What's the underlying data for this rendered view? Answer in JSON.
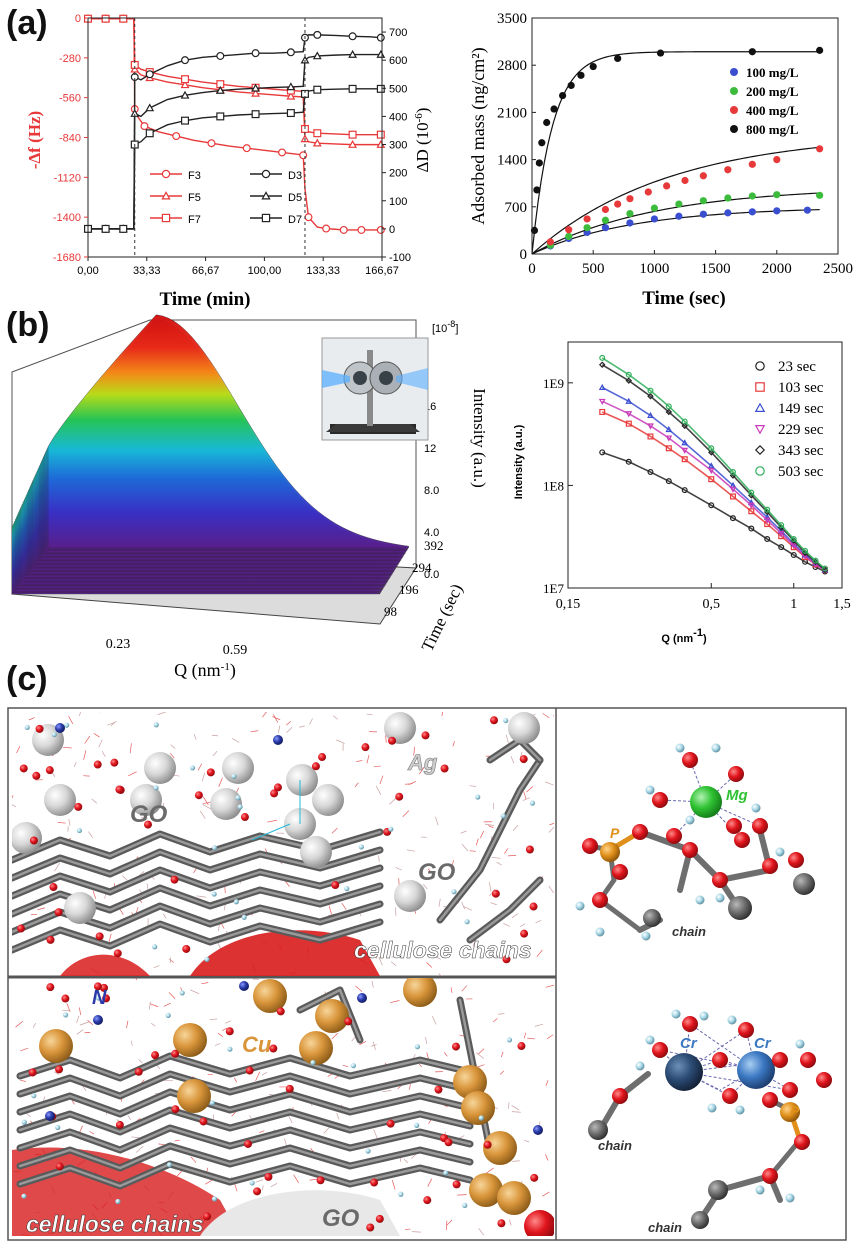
{
  "panels": {
    "a": "(a)",
    "b": "(b)",
    "c": "(c)"
  },
  "chart_data": [
    {
      "id": "a-left",
      "type": "line",
      "xlabel": "Time (min)",
      "ylabel_left": "-Δf (Hz)",
      "ylabel_right": "ΔD (10",
      "ylabel_right_sup": "-6",
      "ylabel_right_tail": ")",
      "xlim": [
        0,
        166.67
      ],
      "ylim_left": [
        -1680,
        0
      ],
      "ylim_right": [
        -100,
        750
      ],
      "x_ticks": [
        "0,00",
        "33,33",
        "66,67",
        "100,00",
        "133,33",
        "166,67"
      ],
      "x_tick_values": [
        0,
        33.33,
        66.67,
        100,
        133.33,
        166.67
      ],
      "y_left_ticks": [
        0,
        -280,
        -560,
        -840,
        -1120,
        -1400,
        -1680
      ],
      "y_right_ticks": [
        700,
        600,
        500,
        400,
        300,
        200,
        100,
        0,
        -100
      ],
      "vlines": [
        26.5,
        123
      ],
      "colors": {
        "freq": "#e8393a",
        "diss": "#222222"
      },
      "legend": [
        "F3",
        "F5",
        "F7",
        "D3",
        "D5",
        "D7"
      ],
      "series": [
        {
          "name": "F3",
          "axis": "left",
          "marker": "circle",
          "color": "#e8393a",
          "x": [
            0,
            5,
            10,
            15,
            20,
            26,
            26.5,
            28,
            32,
            40,
            50,
            60,
            70,
            80,
            90,
            100,
            110,
            120,
            122,
            123,
            125,
            130,
            135,
            140,
            145,
            150,
            155,
            160,
            166
          ],
          "y": [
            -5,
            -5,
            -5,
            -5,
            -5,
            -5,
            -640,
            -690,
            -760,
            -800,
            -830,
            -860,
            -880,
            -900,
            -915,
            -930,
            -945,
            -960,
            -965,
            -1200,
            -1400,
            -1470,
            -1480,
            -1485,
            -1490,
            -1490,
            -1490,
            -1490,
            -1490
          ]
        },
        {
          "name": "F5",
          "axis": "left",
          "marker": "triangle",
          "color": "#e8393a",
          "x": [
            0,
            5,
            10,
            15,
            20,
            26,
            26.5,
            30,
            35,
            45,
            55,
            65,
            75,
            85,
            95,
            105,
            115,
            122,
            123,
            125,
            130,
            140,
            150,
            160,
            166
          ],
          "y": [
            -5,
            -5,
            -5,
            -5,
            -5,
            -5,
            -360,
            -400,
            -420,
            -450,
            -470,
            -490,
            -505,
            -520,
            -530,
            -540,
            -550,
            -555,
            -850,
            -870,
            -880,
            -885,
            -890,
            -890,
            -890
          ]
        },
        {
          "name": "F7",
          "axis": "left",
          "marker": "square",
          "color": "#e8393a",
          "x": [
            0,
            5,
            10,
            15,
            20,
            26,
            26.5,
            30,
            35,
            45,
            55,
            65,
            75,
            85,
            95,
            105,
            115,
            122,
            123,
            125,
            130,
            140,
            150,
            160,
            166
          ],
          "y": [
            -5,
            -5,
            -5,
            -5,
            -5,
            -5,
            -330,
            -360,
            -380,
            -410,
            -430,
            -450,
            -465,
            -480,
            -490,
            -500,
            -510,
            -515,
            -780,
            -800,
            -810,
            -815,
            -820,
            -820,
            -820
          ]
        },
        {
          "name": "D3",
          "axis": "right",
          "marker": "circle",
          "color": "#222222",
          "x": [
            0,
            5,
            10,
            15,
            20,
            26,
            26.5,
            30,
            35,
            45,
            55,
            65,
            75,
            85,
            95,
            105,
            115,
            122,
            123,
            125,
            130,
            140,
            150,
            160,
            166
          ],
          "y": [
            0,
            0,
            0,
            0,
            0,
            0,
            540,
            530,
            550,
            580,
            600,
            610,
            615,
            620,
            625,
            625,
            628,
            630,
            680,
            690,
            690,
            688,
            685,
            683,
            680
          ]
        },
        {
          "name": "D5",
          "axis": "right",
          "marker": "triangle",
          "color": "#222222",
          "x": [
            0,
            5,
            10,
            15,
            20,
            26,
            26.5,
            30,
            35,
            45,
            55,
            65,
            75,
            85,
            95,
            105,
            115,
            122,
            123,
            125,
            130,
            140,
            150,
            160,
            166
          ],
          "y": [
            0,
            0,
            0,
            0,
            0,
            0,
            410,
            400,
            430,
            460,
            475,
            485,
            492,
            497,
            500,
            503,
            505,
            507,
            600,
            610,
            615,
            618,
            620,
            620,
            620
          ]
        },
        {
          "name": "D7",
          "axis": "right",
          "marker": "square",
          "color": "#222222",
          "x": [
            0,
            5,
            10,
            15,
            20,
            26,
            26.5,
            30,
            35,
            45,
            55,
            65,
            75,
            85,
            95,
            105,
            115,
            122,
            123,
            125,
            130,
            140,
            150,
            160,
            166
          ],
          "y": [
            0,
            0,
            0,
            0,
            0,
            0,
            300,
            310,
            340,
            370,
            385,
            395,
            400,
            405,
            408,
            410,
            412,
            415,
            480,
            490,
            495,
            497,
            498,
            498,
            498
          ]
        }
      ]
    },
    {
      "id": "a-right",
      "type": "scatter",
      "xlabel": "Time (sec)",
      "ylabel": "Adsorbed mass (ng/cm²)",
      "xlim": [
        0,
        2500
      ],
      "ylim": [
        0,
        3500
      ],
      "x_ticks": [
        0,
        500,
        1000,
        1500,
        2000,
        2500
      ],
      "y_ticks": [
        0,
        700,
        1400,
        2100,
        2800,
        3500
      ],
      "legend_position": "top-right",
      "series": [
        {
          "name": "100 mg/L",
          "color": "#3a4fd0",
          "x": [
            150,
            300,
            450,
            600,
            800,
            1000,
            1200,
            1400,
            1600,
            1800,
            2000,
            2250
          ],
          "y": [
            120,
            230,
            320,
            390,
            460,
            520,
            560,
            590,
            610,
            625,
            640,
            650
          ],
          "fit_max": 700,
          "fit_k": 0.0012
        },
        {
          "name": "200 mg/L",
          "color": "#3dbb3d",
          "x": [
            150,
            300,
            450,
            600,
            800,
            1000,
            1200,
            1400,
            1600,
            1800,
            2000,
            2350
          ],
          "y": [
            130,
            260,
            390,
            500,
            600,
            680,
            740,
            790,
            830,
            860,
            880,
            870
          ],
          "fit_max": 1000,
          "fit_k": 0.001
        },
        {
          "name": "400 mg/L",
          "color": "#e8393a",
          "x": [
            150,
            300,
            450,
            600,
            700,
            800,
            950,
            1100,
            1250,
            1400,
            1600,
            1800,
            2000,
            2350
          ],
          "y": [
            180,
            360,
            520,
            660,
            740,
            820,
            920,
            1010,
            1090,
            1160,
            1250,
            1330,
            1400,
            1560
          ],
          "fit_max": 1800,
          "fit_k": 0.0009
        },
        {
          "name": "800 mg/L",
          "color": "#111111",
          "x": [
            20,
            40,
            60,
            80,
            120,
            180,
            250,
            320,
            400,
            500,
            700,
            1050,
            1800,
            2350
          ],
          "y": [
            350,
            950,
            1350,
            1650,
            1950,
            2150,
            2350,
            2500,
            2650,
            2780,
            2900,
            2980,
            3000,
            3020
          ],
          "fit_max": 3000,
          "fit_k": 0.006
        }
      ]
    },
    {
      "id": "b-left",
      "type": "area",
      "xlabel": "Q (nm",
      "xlabel_sup": "-1",
      "xlabel_tail": ")",
      "ylabel": "Intensity (a.u.)",
      "zlabel": "Time (sec)",
      "scale_note": "[10",
      "scale_note_sup": "-8",
      "scale_note_tail": "]",
      "q_ticks": [
        "0.23",
        "0.59"
      ],
      "time_ticks": [
        "98",
        "196",
        "294",
        "392"
      ],
      "intensity_ticks": [
        "0.0",
        "4.0",
        "8.0",
        "12",
        "16"
      ],
      "colormap": [
        "#5a1f8a",
        "#3a2fc4",
        "#1f6ad8",
        "#18b8d8",
        "#26c456",
        "#b8dc1a",
        "#f4d41a",
        "#f48a18",
        "#e82a1a",
        "#d01010"
      ]
    },
    {
      "id": "b-right",
      "type": "scatter",
      "xlabel": "Q (nm",
      "xlabel_sup": "-1",
      "xlabel_tail": ")",
      "ylabel": "Intensity (a.u.)",
      "x_scale": "log",
      "y_scale": "log",
      "xlim": [
        0.15,
        1.5
      ],
      "ylim": [
        10000000.0,
        2500000000.0
      ],
      "x_ticks": [
        "0,15",
        "0,5",
        "1",
        "1,5"
      ],
      "x_tick_values": [
        0.15,
        0.5,
        1,
        1.5
      ],
      "y_ticks": [
        "1E7",
        "1E8",
        "1E9"
      ],
      "y_tick_values": [
        10000000.0,
        100000000.0,
        1000000000.0
      ],
      "series": [
        {
          "name": "23 sec",
          "marker": "circle",
          "color": "#222222",
          "x": [
            0.2,
            0.25,
            0.3,
            0.35,
            0.4,
            0.5,
            0.6,
            0.7,
            0.8,
            0.9,
            1.0,
            1.1,
            1.2,
            1.3
          ],
          "y": [
            210000000.0,
            170000000.0,
            135000000.0,
            110000000.0,
            90000000.0,
            64000000.0,
            48000000.0,
            38000000.0,
            30000000.0,
            25000000.0,
            21000000.0,
            18000000.0,
            16000000.0,
            14500000.0
          ]
        },
        {
          "name": "103 sec",
          "marker": "square",
          "color": "#e8393a",
          "x": [
            0.2,
            0.25,
            0.3,
            0.35,
            0.4,
            0.5,
            0.6,
            0.7,
            0.8,
            0.9,
            1.0,
            1.1,
            1.2,
            1.3
          ],
          "y": [
            520000000.0,
            400000000.0,
            300000000.0,
            230000000.0,
            180000000.0,
            115000000.0,
            78000000.0,
            56000000.0,
            42000000.0,
            32000000.0,
            25000000.0,
            20000000.0,
            17000000.0,
            15000000.0
          ]
        },
        {
          "name": "149 sec",
          "marker": "triangle",
          "color": "#3a4fd0",
          "x": [
            0.2,
            0.25,
            0.3,
            0.35,
            0.4,
            0.5,
            0.6,
            0.7,
            0.8,
            0.9,
            1.0,
            1.1,
            1.2,
            1.3
          ],
          "y": [
            900000000.0,
            660000000.0,
            480000000.0,
            350000000.0,
            260000000.0,
            155000000.0,
            100000000.0,
            68000000.0,
            49000000.0,
            36000000.0,
            27000000.0,
            21000000.0,
            17500000.0,
            15000000.0
          ]
        },
        {
          "name": "229 sec",
          "marker": "triangle-down",
          "color": "#c83ab8",
          "x": [
            0.2,
            0.25,
            0.3,
            0.35,
            0.4,
            0.5,
            0.6,
            0.7,
            0.8,
            0.9,
            1.0,
            1.1,
            1.2,
            1.3
          ],
          "y": [
            660000000.0,
            500000000.0,
            380000000.0,
            290000000.0,
            220000000.0,
            140000000.0,
            92000000.0,
            64000000.0,
            46000000.0,
            34000000.0,
            26000000.0,
            20500000.0,
            17000000.0,
            15000000.0
          ]
        },
        {
          "name": "343 sec",
          "marker": "diamond",
          "color": "#222222",
          "x": [
            0.2,
            0.25,
            0.3,
            0.35,
            0.4,
            0.5,
            0.6,
            0.7,
            0.8,
            0.9,
            1.0,
            1.1,
            1.2,
            1.3
          ],
          "y": [
            1500000000.0,
            1050000000.0,
            740000000.0,
            520000000.0,
            380000000.0,
            210000000.0,
            125000000.0,
            80000000.0,
            55000000.0,
            39000000.0,
            29000000.0,
            22000000.0,
            18000000.0,
            15000000.0
          ]
        },
        {
          "name": "503 sec",
          "marker": "circle",
          "color": "#2fae5a",
          "x": [
            0.2,
            0.25,
            0.3,
            0.35,
            0.4,
            0.5,
            0.6,
            0.7,
            0.8,
            0.9,
            1.0,
            1.1,
            1.2,
            1.3
          ],
          "y": [
            1750000000.0,
            1200000000.0,
            840000000.0,
            590000000.0,
            420000000.0,
            230000000.0,
            135000000.0,
            85000000.0,
            58000000.0,
            41000000.0,
            30000000.0,
            23000000.0,
            18500000.0,
            15500000.0
          ]
        }
      ]
    }
  ],
  "molecular": {
    "top_labels": {
      "ag": "Ag",
      "go1": "GO",
      "go2": "GO",
      "cellulose": "cellulose chains"
    },
    "bottom_labels": {
      "n": "N",
      "cu": "Cu",
      "cellulose": "cellulose chains",
      "go": "GO"
    },
    "right_top_labels": {
      "mg": "Mg",
      "p": "P",
      "chain": "chain"
    },
    "right_bottom_labels": {
      "cr1": "Cr",
      "cr2": "Cr",
      "p": "P",
      "chain1": "chain",
      "chain2": "chain"
    },
    "colors": {
      "oxygen": "#e0141c",
      "carbon": "#6e6e6e",
      "silver": "#d7d7d7",
      "copper": "#d9953a",
      "nitrogen": "#2a3aa8",
      "magnesium": "#2ec232",
      "phosphorus": "#e0901a",
      "chromium": "#3b78c2",
      "hydrogen": "#a8d8e8"
    }
  }
}
